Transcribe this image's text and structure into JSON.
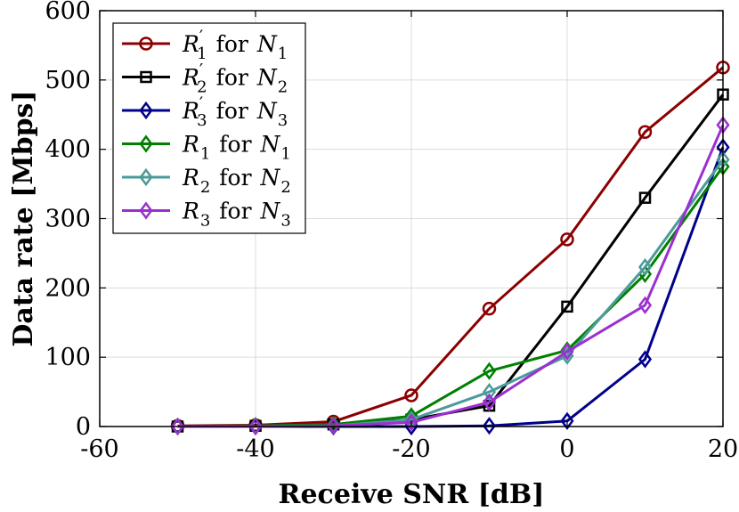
{
  "chart_data": {
    "type": "line",
    "xlabel": "Receive SNR [dB]",
    "ylabel": "Data rate [Mbps]",
    "xlim": [
      -60,
      20
    ],
    "ylim": [
      0,
      600
    ],
    "xticks": [
      -60,
      -40,
      -20,
      0,
      20
    ],
    "yticks": [
      0,
      100,
      200,
      300,
      400,
      500,
      600
    ],
    "xtick_labels": [
      "-60",
      "-40",
      "-20",
      "0",
      "20"
    ],
    "ytick_labels": [
      "0",
      "100",
      "200",
      "300",
      "400",
      "500",
      "600"
    ],
    "grid": true,
    "legend_position": "top-left",
    "legend_connector": "for",
    "x": [
      -50,
      -40,
      -30,
      -20,
      -10,
      0,
      10,
      20
    ],
    "series": [
      {
        "name": "R'1 for N1",
        "rate": "R",
        "rate_sub": "1",
        "prime": true,
        "net": "N",
        "net_sub": "1",
        "marker": "circle",
        "color": "#8B0000",
        "values": [
          1,
          2,
          7,
          45,
          170,
          270,
          425,
          518
        ]
      },
      {
        "name": "R'2 for N2",
        "rate": "R",
        "rate_sub": "2",
        "prime": true,
        "net": "N",
        "net_sub": "2",
        "marker": "square",
        "color": "#000000",
        "values": [
          0,
          1,
          3,
          10,
          30,
          173,
          330,
          479
        ]
      },
      {
        "name": "R'3 for N3",
        "rate": "R",
        "rate_sub": "3",
        "prime": true,
        "net": "N",
        "net_sub": "3",
        "marker": "diamond",
        "color": "#00008B",
        "values": [
          0,
          0,
          0,
          0,
          1,
          8,
          97,
          403
        ]
      },
      {
        "name": "R1 for N1",
        "rate": "R",
        "rate_sub": "1",
        "prime": false,
        "net": "N",
        "net_sub": "1",
        "marker": "diamond",
        "color": "#008000",
        "values": [
          0,
          1,
          3,
          15,
          80,
          110,
          220,
          375
        ]
      },
      {
        "name": "R2 for N2",
        "rate": "R",
        "rate_sub": "2",
        "prime": false,
        "net": "N",
        "net_sub": "2",
        "marker": "diamond",
        "color": "#4C9A9A",
        "values": [
          0,
          0,
          1,
          10,
          50,
          102,
          230,
          385
        ]
      },
      {
        "name": "R3 for N3",
        "rate": "R",
        "rate_sub": "3",
        "prime": false,
        "net": "N",
        "net_sub": "3",
        "marker": "diamond",
        "color": "#9B30D0",
        "values": [
          0,
          0,
          1,
          6,
          35,
          108,
          175,
          435
        ]
      }
    ]
  }
}
